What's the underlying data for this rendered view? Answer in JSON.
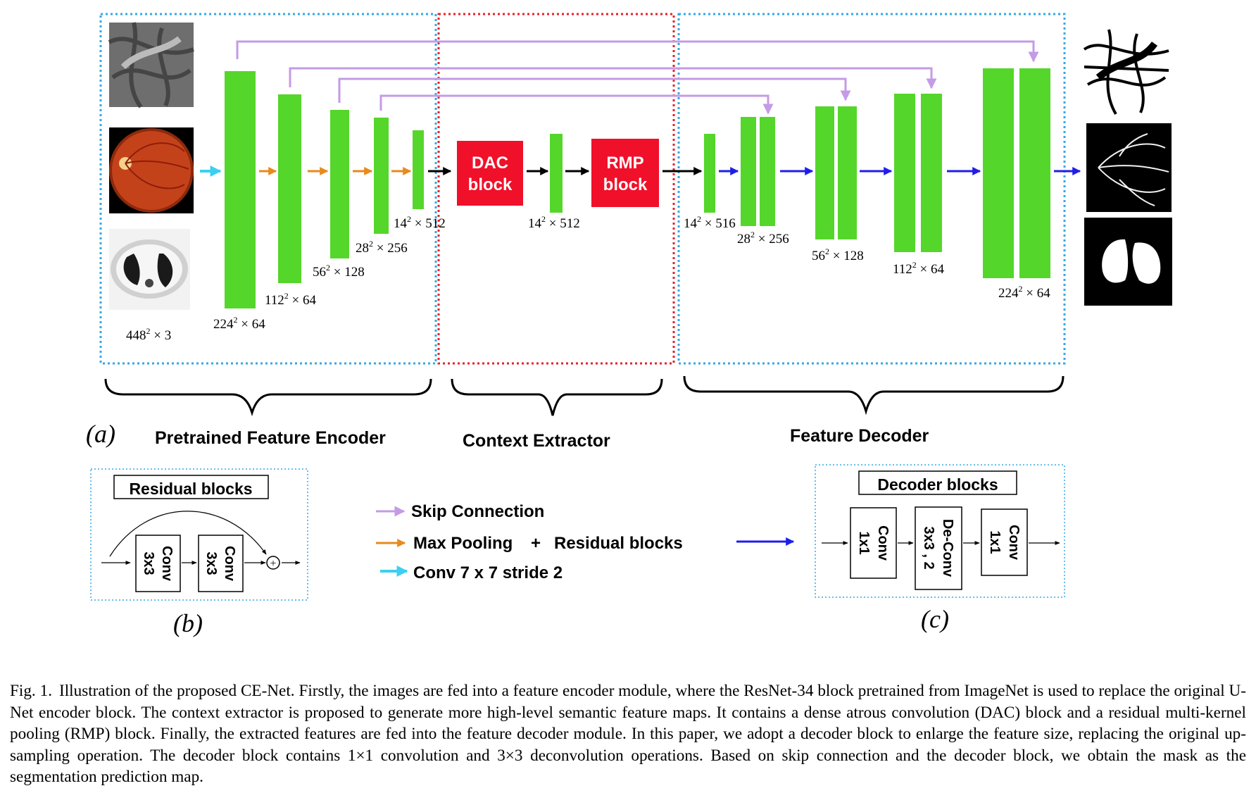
{
  "sections": {
    "encoder": "Pretrained Feature Encoder",
    "context": "Context Extractor",
    "decoder": "Feature Decoder"
  },
  "panel_labels": {
    "a": "(a)",
    "b": "(b)",
    "c": "(c)"
  },
  "blocks": {
    "dac": [
      "DAC",
      "block"
    ],
    "rmp": [
      "RMP",
      "block"
    ]
  },
  "dims": {
    "input": [
      "448",
      "2",
      " × 3"
    ],
    "enc1": [
      "224",
      "2",
      " × 64"
    ],
    "enc2": [
      "112",
      "2",
      " × 64"
    ],
    "enc3": [
      "56",
      "2",
      " × 128"
    ],
    "enc4": [
      "28",
      "2",
      " × 256"
    ],
    "enc5": [
      "14",
      "2",
      " × 512"
    ],
    "ctx": [
      "14",
      "2",
      " × 512"
    ],
    "dec0": [
      "14",
      "2",
      " × 516"
    ],
    "dec1": [
      "28",
      "2",
      " × 256"
    ],
    "dec2": [
      "56",
      "2",
      " × 128"
    ],
    "dec3": [
      "112",
      "2",
      " × 64"
    ],
    "dec4": [
      "224",
      "2",
      " × 64"
    ]
  },
  "legend": {
    "skip": "Skip Connection",
    "maxpool": "Max Pooling",
    "plus": "+",
    "residual": "Residual blocks",
    "conv7": "Conv 7 x 7 stride 2"
  },
  "residual_box": {
    "title": "Residual blocks",
    "conv_a": [
      "Conv",
      "3x3"
    ],
    "conv_b": [
      "Conv",
      "3x3"
    ],
    "sum": "+"
  },
  "decoder_box": {
    "title": "Decoder blocks",
    "conv_a": [
      "Conv",
      "1x1"
    ],
    "deconv": [
      "De-Conv",
      "3x3 , 2"
    ],
    "conv_b": [
      "Conv",
      "1x1"
    ]
  },
  "caption": {
    "label": "Fig. 1.",
    "text": "Illustration of the proposed CE-Net. Firstly, the images are fed into a feature encoder module, where the ResNet-34 block pretrained from ImageNet is used to replace the original U-Net encoder block. The context extractor is proposed to generate more high-level semantic feature maps. It contains a dense atrous convolution (DAC) block and a residual multi-kernel pooling (RMP) block. Finally, the extracted features are fed into the feature decoder module. In this paper, we adopt a decoder block to enlarge the feature size, replacing the original up-sampling operation. The decoder block contains 1×1 convolution and 3×3 deconvolution operations. Based on skip connection and the decoder block, we obtain the mask as the segmentation prediction map."
  },
  "colors": {
    "feature_map": "#55d62b",
    "context_block": "#f0102a",
    "skip": "#c49be6",
    "maxpool": "#e88a1c",
    "conv7": "#3ccff0",
    "decoder_arrow": "#1f1ee8",
    "encoder_border": "#33a8e6",
    "context_border": "#e8202a"
  }
}
